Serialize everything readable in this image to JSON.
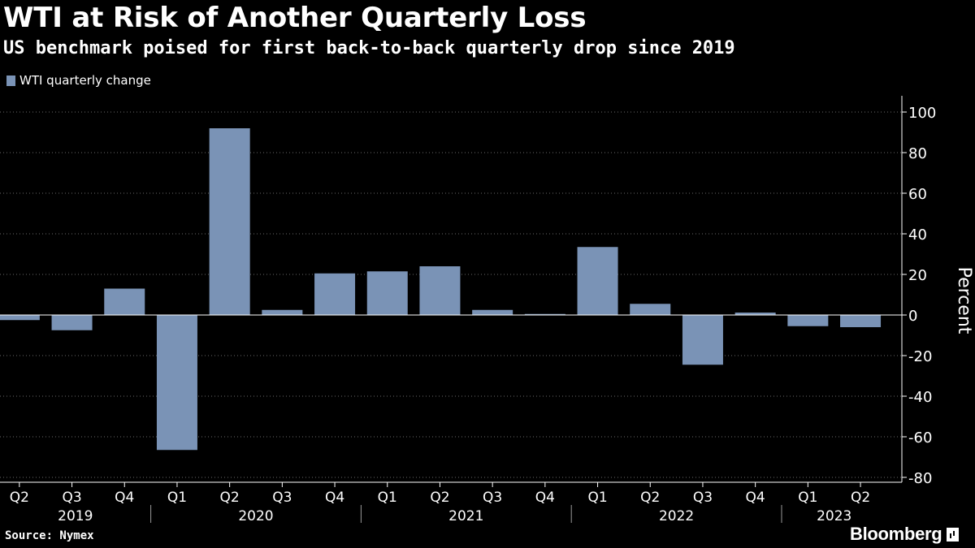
{
  "title": "WTI at Risk of Another Quarterly Loss",
  "subtitle": "US benchmark poised for first back-to-back quarterly drop since 2019",
  "legend": {
    "label": "WTI quarterly change",
    "color": "#7a93b6"
  },
  "footer": {
    "source": "Source: Nymex",
    "brand": "Bloomberg",
    "brand_icon": "bloomberg-terminal-icon"
  },
  "chart_data": {
    "type": "bar",
    "title": "WTI at Risk of Another Quarterly Loss",
    "subtitle": "US benchmark poised for first back-to-back quarterly drop since 2019",
    "xlabel": "",
    "ylabel": "Percent",
    "ylim": [
      -80,
      100
    ],
    "yticks": [
      100,
      80,
      60,
      40,
      20,
      0,
      -20,
      -40,
      -60,
      -80
    ],
    "ytick_labels": [
      "100",
      "80",
      "60",
      "40",
      "20",
      "0",
      "-20",
      "-40",
      "-60",
      "-80"
    ],
    "y_axis_position": "right",
    "legend_position": "top-left",
    "grid": "horizontal dotted",
    "categories": [
      "Q2",
      "Q3",
      "Q4",
      "Q1",
      "Q2",
      "Q3",
      "Q4",
      "Q1",
      "Q2",
      "Q3",
      "Q4",
      "Q1",
      "Q2",
      "Q3",
      "Q4",
      "Q1",
      "Q2"
    ],
    "years": [
      {
        "label": "2019",
        "quarters": 3
      },
      {
        "label": "2020",
        "quarters": 4
      },
      {
        "label": "2021",
        "quarters": 4
      },
      {
        "label": "2022",
        "quarters": 4
      },
      {
        "label": "2023",
        "quarters": 2
      }
    ],
    "series": [
      {
        "name": "WTI quarterly change",
        "color": "#7a93b6",
        "values": [
          -2.5,
          -7.5,
          13,
          -66.5,
          92,
          2.5,
          20.5,
          21.5,
          24,
          2.5,
          0.5,
          33.5,
          5.5,
          -24.5,
          1.2,
          -5.5,
          -6
        ]
      }
    ]
  }
}
